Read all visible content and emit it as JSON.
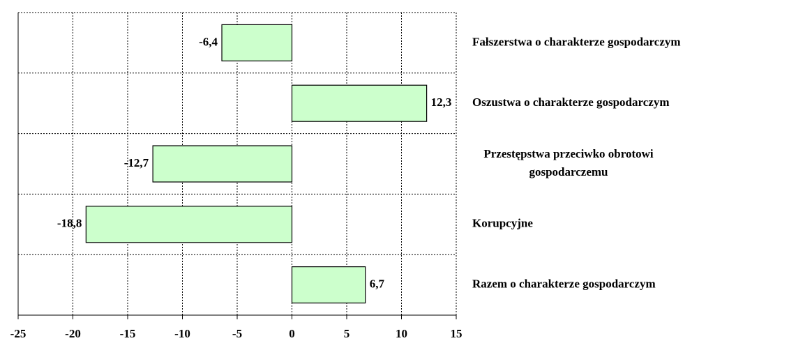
{
  "chart_data": {
    "type": "barh",
    "categories": [
      "Fałszerstwa o charakterze gospodarczym",
      "Oszustwa o charakterze gospodarczym",
      "Przestępstwa przeciwko obrotowi\ngospodarczemu",
      "Korupcyjne",
      "Razem o charakterze gospodarczym"
    ],
    "values": [
      -6.4,
      12.3,
      -12.7,
      -18.8,
      6.7
    ],
    "value_labels": [
      "-6,4",
      "12,3",
      "-12,7",
      "-18,8",
      "6,7"
    ],
    "color": "#ccffcc",
    "xlim": [
      -25,
      15
    ],
    "xticks": [
      -25,
      -20,
      -15,
      -10,
      -5,
      0,
      5,
      10,
      15
    ],
    "grid": true
  }
}
